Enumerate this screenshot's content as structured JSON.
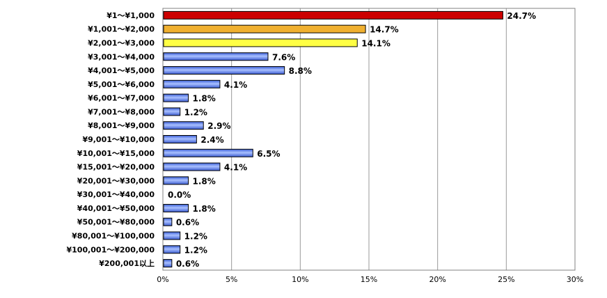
{
  "chart_data": {
    "type": "bar",
    "orientation": "horizontal",
    "title": "",
    "xlabel": "",
    "ylabel": "",
    "xlim": [
      0,
      30
    ],
    "x_ticks": [
      "0%",
      "5%",
      "10%",
      "15%",
      "20%",
      "25%",
      "30%"
    ],
    "grid": "vertical",
    "legend": "none",
    "categories": [
      "¥1～¥1,000",
      "¥1,001～¥2,000",
      "¥2,001～¥3,000",
      "¥3,001～¥4,000",
      "¥4,001～¥5,000",
      "¥5,001～¥6,000",
      "¥6,001～¥7,000",
      "¥7,001～¥8,000",
      "¥8,001～¥9,000",
      "¥9,001～¥10,000",
      "¥10,001～¥15,000",
      "¥15,001～¥20,000",
      "¥20,001～¥30,000",
      "¥30,001～¥40,000",
      "¥40,001～¥50,000",
      "¥50,001～¥80,000",
      "¥80,001～¥100,000",
      "¥100,001～¥200,000",
      "¥200,001以上"
    ],
    "values": [
      24.7,
      14.7,
      14.1,
      7.6,
      8.8,
      4.1,
      1.8,
      1.2,
      2.9,
      2.4,
      6.5,
      4.1,
      1.8,
      0.0,
      1.8,
      0.6,
      1.2,
      1.2,
      0.6
    ],
    "value_labels": [
      "24.7%",
      "14.7%",
      "14.1%",
      "7.6%",
      "8.8%",
      "4.1%",
      "1.8%",
      "1.2%",
      "2.9%",
      "2.4%",
      "6.5%",
      "4.1%",
      "1.8%",
      "0.0%",
      "1.8%",
      "0.6%",
      "1.2%",
      "1.2%",
      "0.6%"
    ],
    "bar_colors": [
      "#cc0000",
      "#f0b030",
      "#ffff44",
      "#5b7fe8",
      "#5b7fe8",
      "#5b7fe8",
      "#5b7fe8",
      "#5b7fe8",
      "#5b7fe8",
      "#5b7fe8",
      "#5b7fe8",
      "#5b7fe8",
      "#5b7fe8",
      "#5b7fe8",
      "#5b7fe8",
      "#5b7fe8",
      "#5b7fe8",
      "#5b7fe8",
      "#5b7fe8"
    ]
  }
}
